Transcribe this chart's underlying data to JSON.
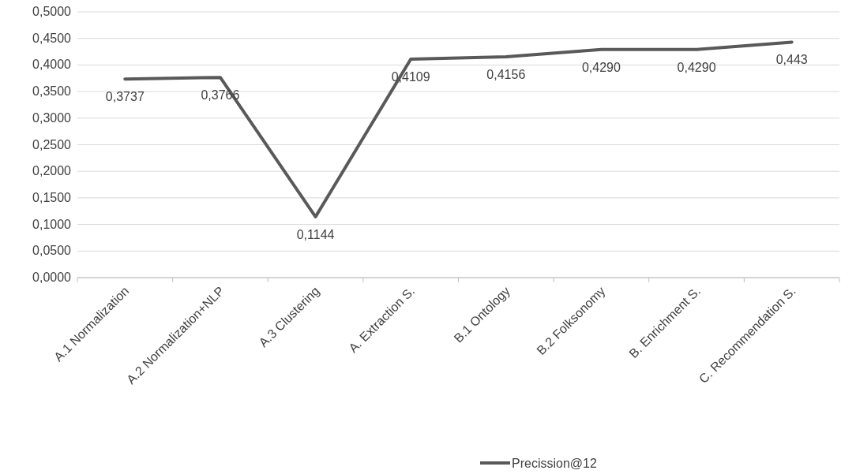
{
  "chart_data": {
    "type": "line",
    "categories": [
      "A.1 Normalization",
      "A.2 Normalization+NLP",
      "A.3 Clustering",
      "A. Extraction S.",
      "B.1 Ontology",
      "B.2 Folksonomy",
      "B. Enrichment S.",
      "C. Recommendation S."
    ],
    "series": [
      {
        "name": "Precission@12",
        "color": "#595959",
        "values": [
          0.3737,
          0.3766,
          0.1144,
          0.4109,
          0.4156,
          0.429,
          0.429,
          0.443
        ],
        "value_labels": [
          "0,3737",
          "0,3766",
          "0,1144",
          "0,4109",
          "0,4156",
          "0,4290",
          "0,4290",
          "0,443"
        ]
      }
    ],
    "ylim": [
      0,
      0.5
    ],
    "yticks": [
      {
        "value": 0,
        "label": "0,0000"
      },
      {
        "value": 0.05,
        "label": "0,0500"
      },
      {
        "value": 0.1,
        "label": "0,1000"
      },
      {
        "value": 0.15,
        "label": "0,1500"
      },
      {
        "value": 0.2,
        "label": "0,2000"
      },
      {
        "value": 0.25,
        "label": "0,2500"
      },
      {
        "value": 0.3,
        "label": "0,3000"
      },
      {
        "value": 0.35,
        "label": "0,3500"
      },
      {
        "value": 0.4,
        "label": "0,4000"
      },
      {
        "value": 0.45,
        "label": "0,4500"
      },
      {
        "value": 0.5,
        "label": "0,5000"
      }
    ],
    "grid": "y",
    "legend": "bottom",
    "marker": "none",
    "line_style": "solid"
  }
}
